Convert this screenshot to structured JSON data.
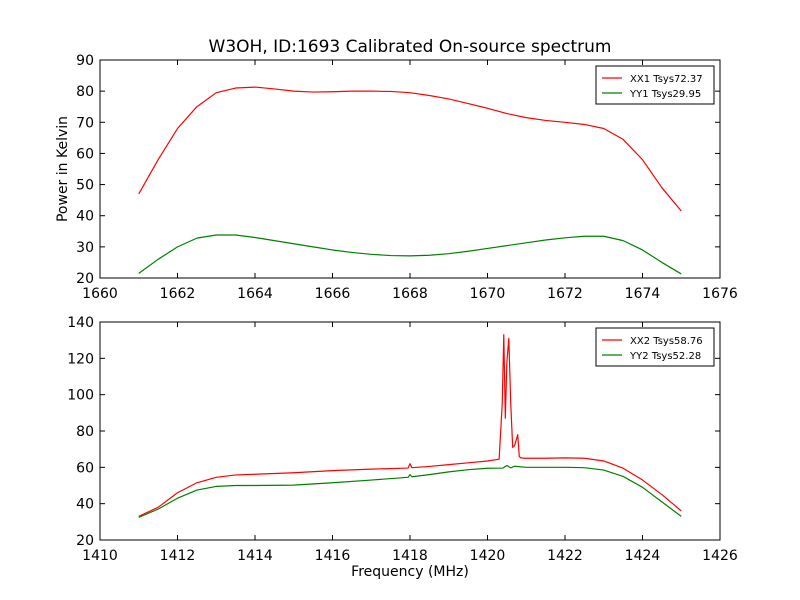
{
  "title": "W3OH, ID:1693 Calibrated On-source spectrum",
  "chart_data": [
    {
      "type": "line",
      "ylabel": "Power in Kelvin",
      "xlabel": "",
      "xlim": [
        1660,
        1676
      ],
      "ylim": [
        20,
        90
      ],
      "xticks": [
        1660,
        1662,
        1664,
        1666,
        1668,
        1670,
        1672,
        1674,
        1676
      ],
      "yticks": [
        20,
        30,
        40,
        50,
        60,
        70,
        80,
        90
      ],
      "grid": false,
      "legend": "top-right",
      "series": [
        {
          "name": "XX1 Tsys72.37",
          "color": "#ff0000",
          "x": [
            1661.0,
            1661.5,
            1662.0,
            1662.5,
            1663.0,
            1663.5,
            1664.0,
            1664.5,
            1665.0,
            1665.5,
            1666.0,
            1666.5,
            1667.0,
            1667.5,
            1668.0,
            1668.5,
            1669.0,
            1669.5,
            1670.0,
            1670.5,
            1671.0,
            1671.5,
            1672.0,
            1672.5,
            1673.0,
            1673.5,
            1674.0,
            1674.5,
            1675.0
          ],
          "y": [
            47,
            58,
            68,
            75,
            79.5,
            81,
            81.3,
            80.7,
            80,
            79.7,
            79.8,
            80,
            80,
            79.9,
            79.5,
            78.6,
            77.5,
            76,
            74.5,
            72.8,
            71.5,
            70.6,
            70,
            69.3,
            68,
            64.5,
            58,
            49,
            41.5
          ]
        },
        {
          "name": "YY1 Tsys29.95",
          "color": "#008000",
          "x": [
            1661.0,
            1661.5,
            1662.0,
            1662.5,
            1663.0,
            1663.5,
            1664.0,
            1664.5,
            1665.0,
            1665.5,
            1666.0,
            1666.5,
            1667.0,
            1667.5,
            1668.0,
            1668.5,
            1669.0,
            1669.5,
            1670.0,
            1670.5,
            1671.0,
            1671.5,
            1672.0,
            1672.5,
            1673.0,
            1673.5,
            1674.0,
            1674.5,
            1675.0
          ],
          "y": [
            21.5,
            26,
            30,
            32.8,
            33.8,
            33.8,
            33,
            32,
            31,
            30,
            29,
            28.2,
            27.6,
            27.2,
            27.1,
            27.3,
            27.8,
            28.6,
            29.5,
            30.4,
            31.3,
            32.2,
            32.9,
            33.4,
            33.4,
            32,
            29,
            25,
            21.3
          ]
        }
      ]
    },
    {
      "type": "line",
      "ylabel": "",
      "xlabel": "Frequency (MHz)",
      "xlim": [
        1410,
        1426
      ],
      "ylim": [
        20,
        140
      ],
      "xticks": [
        1410,
        1412,
        1414,
        1416,
        1418,
        1420,
        1422,
        1424,
        1426
      ],
      "yticks": [
        20,
        40,
        60,
        80,
        100,
        120,
        140
      ],
      "grid": false,
      "legend": "top-right",
      "series": [
        {
          "name": "XX2 Tsys58.76",
          "color": "#ff0000",
          "x": [
            1411.0,
            1411.5,
            1412.0,
            1412.5,
            1413.0,
            1413.5,
            1414.0,
            1415.0,
            1416.0,
            1417.0,
            1417.95,
            1418.0,
            1418.05,
            1418.5,
            1419.0,
            1419.5,
            1420.0,
            1420.3,
            1420.38,
            1420.42,
            1420.46,
            1420.5,
            1420.55,
            1420.6,
            1420.65,
            1420.7,
            1420.78,
            1420.82,
            1420.86,
            1420.95,
            1421.2,
            1421.5,
            1422.0,
            1422.5,
            1423.0,
            1423.5,
            1424.0,
            1424.5,
            1425.0
          ],
          "y": [
            33,
            38,
            46,
            51.5,
            54.5,
            55.8,
            56.2,
            57,
            58.2,
            59,
            59.6,
            62,
            59.8,
            60.5,
            61.5,
            62.5,
            63.5,
            64.5,
            95,
            133,
            87,
            118,
            131,
            95,
            71,
            72,
            78,
            66,
            65.2,
            65,
            65,
            65,
            65.2,
            65,
            63.5,
            59.5,
            53,
            45,
            36
          ]
        },
        {
          "name": "YY2 Tsys52.28",
          "color": "#008000",
          "x": [
            1411.0,
            1411.5,
            1412.0,
            1412.5,
            1413.0,
            1413.5,
            1414.0,
            1415.0,
            1416.0,
            1417.0,
            1417.95,
            1418.0,
            1418.05,
            1418.5,
            1419.0,
            1419.5,
            1420.0,
            1420.4,
            1420.5,
            1420.6,
            1420.7,
            1421.0,
            1421.5,
            1422.0,
            1422.5,
            1423.0,
            1423.5,
            1424.0,
            1424.5,
            1425.0
          ],
          "y": [
            32.5,
            37,
            43,
            47.5,
            49.5,
            50,
            50,
            50.2,
            51.5,
            53,
            54.5,
            56,
            54.8,
            56,
            57.5,
            58.7,
            59.5,
            59.6,
            61,
            59.7,
            60.6,
            60,
            60,
            60,
            59.8,
            58.5,
            55,
            49,
            41,
            33
          ]
        }
      ]
    }
  ]
}
